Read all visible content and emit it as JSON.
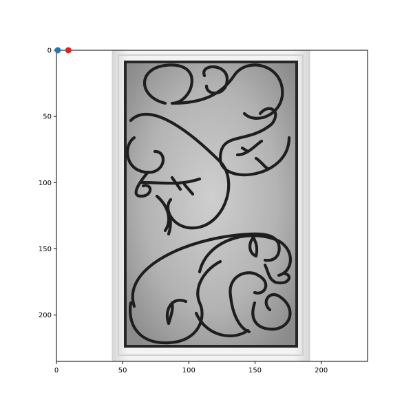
{
  "chart_data": {
    "type": "scatter",
    "title": "",
    "xlabel": "",
    "ylabel": "",
    "xlim": [
      0,
      235
    ],
    "ylim": [
      235,
      0
    ],
    "y_inverted": true,
    "x_ticks": [
      0,
      50,
      100,
      150,
      200
    ],
    "y_ticks": [
      0,
      50,
      100,
      150,
      200
    ],
    "background_image": "ornamental wrought-iron scroll door glass panel",
    "series": [
      {
        "color": "#1f77b4",
        "points": [
          {
            "x": 1,
            "y": 0
          }
        ]
      },
      {
        "color": "#d62728",
        "points": [
          {
            "x": 9,
            "y": 0
          }
        ]
      }
    ]
  },
  "colors": {
    "frame_outer": "#e4e4e4",
    "frame_inner": "#f2f2f2",
    "glass_center": "#c9c9c9",
    "glass_edge": "#8f8f8f",
    "iron": "#1e1e1e"
  }
}
